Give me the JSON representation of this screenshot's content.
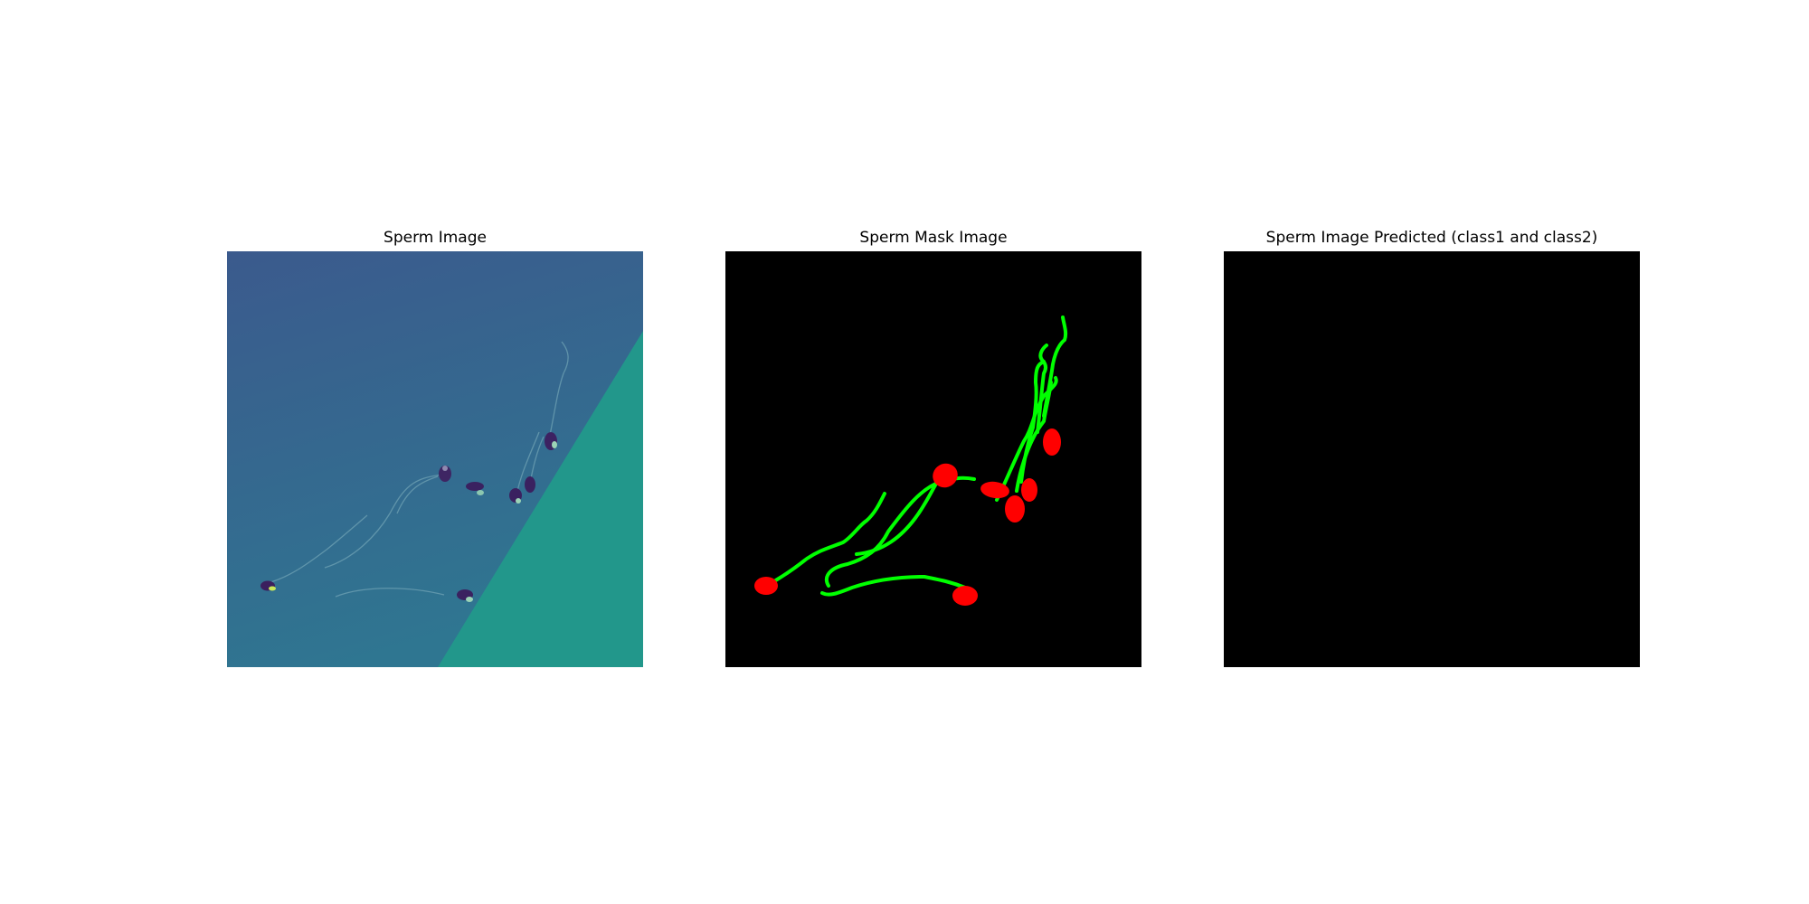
{
  "figure": {
    "panels": [
      {
        "title": "Sperm Image"
      },
      {
        "title": "Sperm Mask Image"
      },
      {
        "title": "Sperm Image Predicted (class1 and class2)"
      }
    ]
  },
  "colors": {
    "micrograph_background": "#385f90",
    "micrograph_bright_region": "#21968c",
    "mask_background": "#000000",
    "mask_head_class": "#ff0000",
    "mask_tail_class": "#00ff00",
    "prediction_background": "#000000"
  }
}
